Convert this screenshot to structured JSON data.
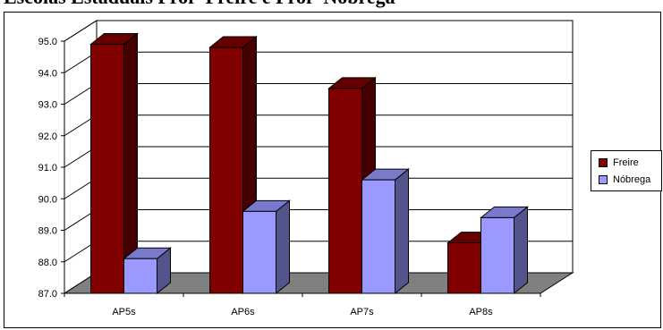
{
  "title": "Escolas Estaduais Profª Freire e Profª Nóbrega",
  "chart_data": {
    "type": "bar",
    "title": "Escolas Estaduais Profª Freire e Profª Nóbrega",
    "xlabel": "",
    "ylabel": "",
    "categories": [
      "AP5s",
      "AP6s",
      "AP7s",
      "AP8s"
    ],
    "series": [
      {
        "name": "Freire",
        "values": [
          94.9,
          94.8,
          93.5,
          88.6
        ],
        "color": "#800000"
      },
      {
        "name": "Nóbrega",
        "values": [
          88.1,
          89.6,
          90.6,
          89.4
        ],
        "color": "#9999ff"
      }
    ],
    "ylim": [
      87.0,
      95.0
    ],
    "yticks": [
      "87.0",
      "88.0",
      "89.0",
      "90.0",
      "91.0",
      "92.0",
      "93.0",
      "94.0",
      "95.0"
    ],
    "grid": true,
    "legend": "right",
    "style": "3d-clustered-column",
    "floor_color": "#808080"
  }
}
